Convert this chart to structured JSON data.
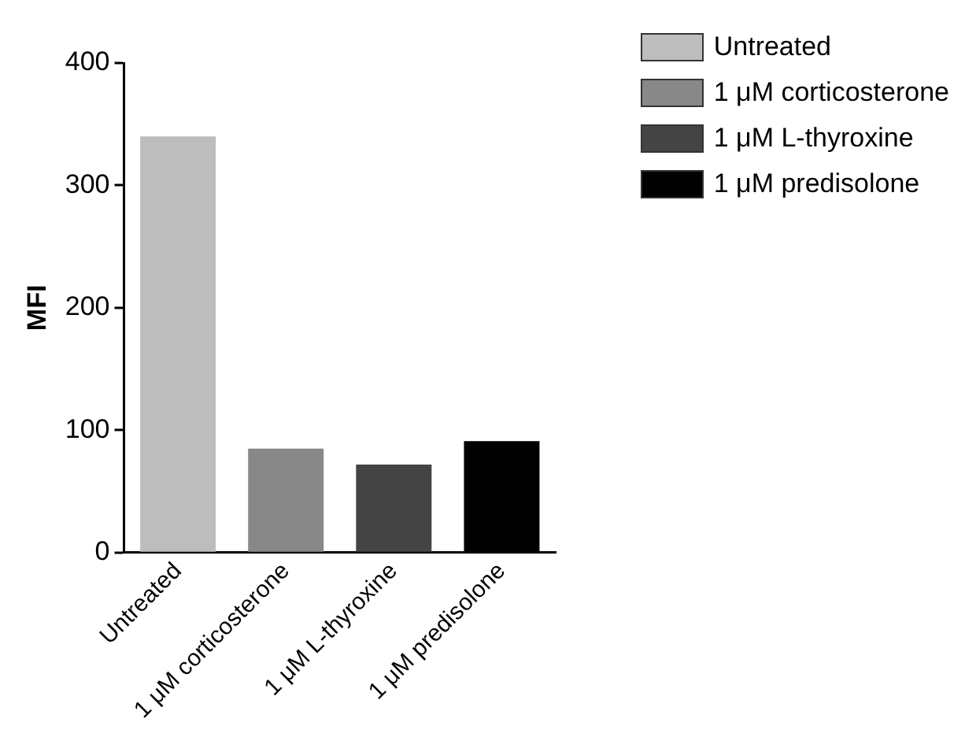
{
  "chart_data": {
    "type": "bar",
    "ylabel": "MFI",
    "categories": [
      "Untreated",
      "1 μM corticosterone",
      "1 μM L-thyroxine",
      "1 μM predisolone"
    ],
    "series": [
      {
        "name": "Untreated",
        "color": "#bdbdbd",
        "values": [
          340,
          null,
          null,
          null
        ]
      },
      {
        "name": "1 μM corticosterone",
        "color": "#888888",
        "values": [
          null,
          85,
          null,
          null
        ]
      },
      {
        "name": "1 μM L-thyroxine",
        "color": "#444444",
        "values": [
          null,
          null,
          72,
          null
        ]
      },
      {
        "name": "1 μM predisolone",
        "color": "#000000",
        "values": [
          null,
          null,
          null,
          91
        ]
      }
    ],
    "ylim": [
      0,
      400
    ],
    "yticks": [
      0,
      100,
      200,
      300,
      400
    ],
    "grid": false,
    "legend": "top right"
  }
}
